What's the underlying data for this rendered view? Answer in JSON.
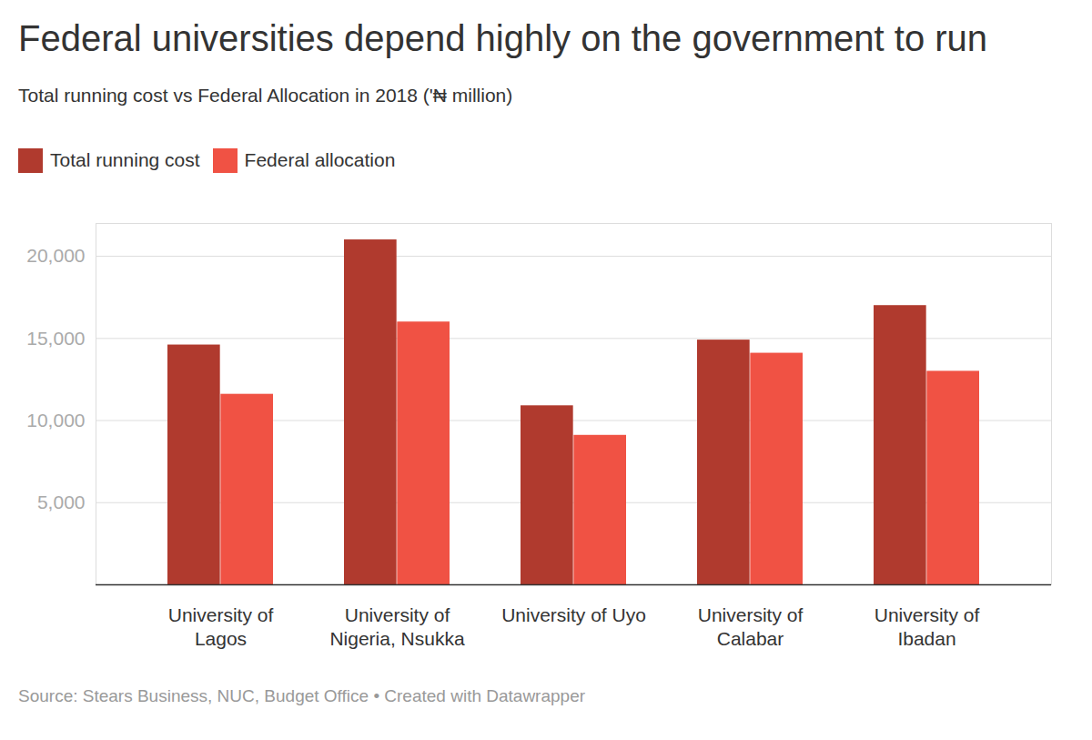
{
  "chart_data": {
    "type": "bar",
    "title": "Federal universities depend highly on the government to run",
    "subtitle": "Total running cost vs Federal Allocation in 2018 ('₦ million)",
    "source": "Source: Stears Business, NUC, Budget Office • Created with Datawrapper",
    "categories": [
      "University of\nLagos",
      "University of\nNigeria, Nsukka",
      "University of Uyo",
      "University of\nCalabar",
      "University of\nIbadan"
    ],
    "series": [
      {
        "name": "Total running cost",
        "color": "#b03a2e",
        "values": [
          14600,
          21000,
          10900,
          14900,
          17000
        ]
      },
      {
        "name": "Federal allocation",
        "color": "#f05244",
        "values": [
          11600,
          16000,
          9100,
          14100,
          13000
        ]
      }
    ],
    "ylim": [
      0,
      22000
    ],
    "yticks": [
      {
        "value": 5000,
        "label": "5,000"
      },
      {
        "value": 10000,
        "label": "10,000"
      },
      {
        "value": 15000,
        "label": "15,000"
      },
      {
        "value": 20000,
        "label": "20,000"
      }
    ],
    "grid": true,
    "data_labels": false
  }
}
